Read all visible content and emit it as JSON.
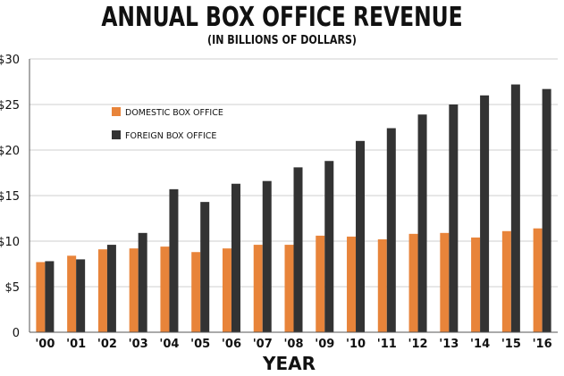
{
  "chart_data": {
    "type": "bar",
    "title": "ANNUAL BOX OFFICE REVENUE",
    "subtitle": "(IN BILLIONS OF DOLLARS)",
    "xlabel": "YEAR",
    "ylabel": "",
    "categories": [
      "'00",
      "'01",
      "'02",
      "'03",
      "'04",
      "'05",
      "'06",
      "'07",
      "'08",
      "'09",
      "'10",
      "'11",
      "'12",
      "'13",
      "'14",
      "'15",
      "'16"
    ],
    "series": [
      {
        "name": "DOMESTIC BOX OFFICE",
        "color": "#e8843a",
        "values": [
          7.7,
          8.4,
          9.1,
          9.2,
          9.4,
          8.8,
          9.2,
          9.6,
          9.6,
          10.6,
          10.5,
          10.2,
          10.8,
          10.9,
          10.4,
          11.1,
          11.4
        ]
      },
      {
        "name": "FOREIGN BOX OFFICE",
        "color": "#333333",
        "values": [
          7.8,
          8.0,
          9.6,
          10.9,
          15.7,
          14.3,
          16.3,
          16.6,
          18.1,
          18.8,
          21.0,
          22.4,
          23.9,
          25.0,
          26.0,
          27.2,
          26.7
        ]
      }
    ],
    "ylim": [
      0,
      30
    ],
    "yticks": [
      "0",
      "$5",
      "$10",
      "$15",
      "$20",
      "$25",
      "$30"
    ],
    "ytick_values": [
      0,
      5,
      10,
      15,
      20,
      25,
      30
    ],
    "grid": true,
    "legend_position": "top-left"
  }
}
